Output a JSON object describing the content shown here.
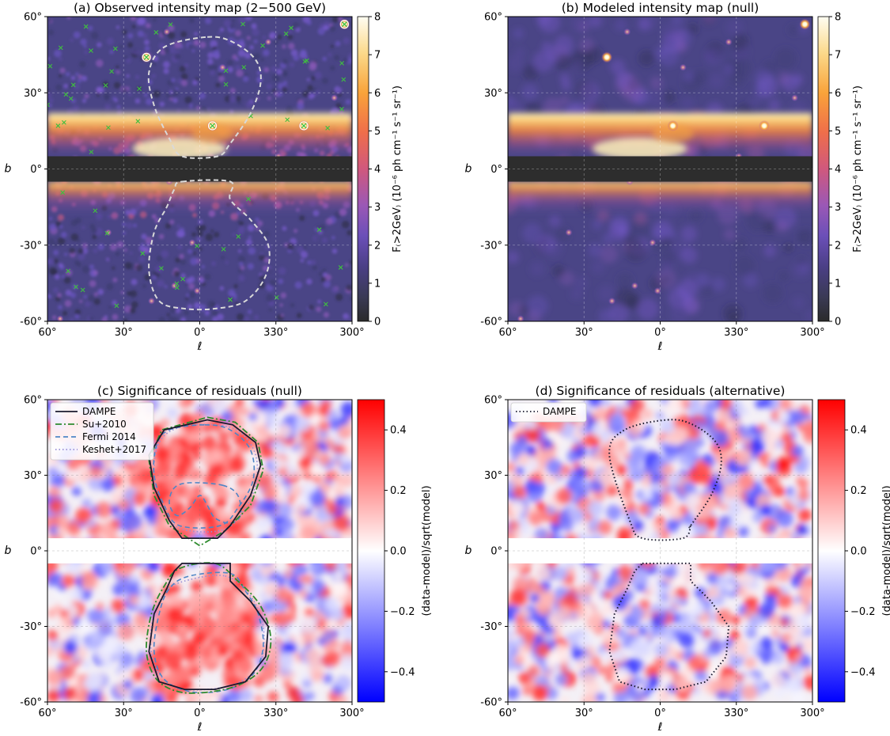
{
  "colors": {
    "gap_dark": "#2d2d2d",
    "gap_light": "#ffffff",
    "contour_light": "#d9d9d9",
    "dampe": "#1a1a2e",
    "su2010": "#2e8b2e",
    "fermi2014": "#4f86c6",
    "keshet2017": "#9a8fd6",
    "source_green": "#3fbf3f"
  },
  "chart_data": [
    {
      "id": "a",
      "type": "heatmap",
      "title": "(a) Observed intensity map (2−500 GeV)",
      "xlabel": "ℓ",
      "ylabel": "b",
      "xlim": [
        60,
        -60
      ],
      "ylim": [
        -60,
        60
      ],
      "xticks": [
        "60°",
        "30°",
        "0°",
        "330°",
        "300°"
      ],
      "xtick_values": [
        60,
        30,
        0,
        -30,
        -60
      ],
      "yticks": [
        "-60°",
        "-30°",
        "0°",
        "30°",
        "60°"
      ],
      "ytick_values": [
        -60,
        -30,
        0,
        30,
        60
      ],
      "masked_band_b": [
        -5,
        5
      ],
      "colormap": "inferno-like",
      "colorbar": {
        "label": "F₍>2GeV₎ (10⁻⁶ ph cm⁻¹ s⁻¹ sr⁻¹)",
        "range": [
          0,
          8
        ],
        "ticks": [
          "0",
          "1",
          "2",
          "3",
          "4",
          "5",
          "6",
          "7",
          "8"
        ],
        "tick_values": [
          0,
          1,
          2,
          3,
          4,
          5,
          6,
          7,
          8
        ]
      },
      "bright_sources": [
        {
          "l": 21,
          "b": 44
        },
        {
          "l": -5,
          "b": 17
        },
        {
          "l": -41,
          "b": 17
        },
        {
          "l": -57,
          "b": 57
        },
        {
          "l": -9,
          "b": 40
        },
        {
          "l": 13,
          "b": 54
        },
        {
          "l": -27,
          "b": 50
        },
        {
          "l": -53,
          "b": 28
        },
        {
          "l": 12,
          "b": -5
        },
        {
          "l": 36,
          "b": -25
        },
        {
          "l": 3,
          "b": -29
        },
        {
          "l": 19,
          "b": -52
        },
        {
          "l": 1,
          "b": -48
        },
        {
          "l": 55,
          "b": -59
        },
        {
          "l": -31,
          "b": 5
        },
        {
          "l": 10,
          "b": -46
        }
      ],
      "contours": [
        {
          "name": "outline",
          "style": "dashed",
          "color": "#d9d9d9"
        }
      ]
    },
    {
      "id": "b",
      "type": "heatmap",
      "title": "(b) Modeled intensity map (null)",
      "xlabel": "ℓ",
      "ylabel": "b",
      "xlim": [
        60,
        -60
      ],
      "ylim": [
        -60,
        60
      ],
      "xticks": [
        "60°",
        "30°",
        "0°",
        "330°",
        "300°"
      ],
      "xtick_values": [
        60,
        30,
        0,
        -30,
        -60
      ],
      "yticks": [
        "-60°",
        "-30°",
        "0°",
        "30°",
        "60°"
      ],
      "ytick_values": [
        -60,
        -30,
        0,
        30,
        60
      ],
      "masked_band_b": [
        -5,
        5
      ],
      "colormap": "inferno-like",
      "colorbar": {
        "label": "F₍>2GeV₎ (10⁻⁶ ph cm⁻¹ s⁻¹ sr⁻¹)",
        "range": [
          0,
          8
        ],
        "ticks": [
          "0",
          "1",
          "2",
          "3",
          "4",
          "5",
          "6",
          "7",
          "8"
        ],
        "tick_values": [
          0,
          1,
          2,
          3,
          4,
          5,
          6,
          7,
          8
        ]
      },
      "bright_sources": [
        {
          "l": 21,
          "b": 44
        },
        {
          "l": -5,
          "b": 17
        },
        {
          "l": -41,
          "b": 17
        },
        {
          "l": -57,
          "b": 57
        },
        {
          "l": -9,
          "b": 40
        },
        {
          "l": 13,
          "b": 54
        },
        {
          "l": -27,
          "b": 50
        },
        {
          "l": -53,
          "b": 28
        },
        {
          "l": 12,
          "b": -5
        },
        {
          "l": 36,
          "b": -25
        },
        {
          "l": 3,
          "b": -29
        },
        {
          "l": 19,
          "b": -52
        },
        {
          "l": 1,
          "b": -48
        },
        {
          "l": 55,
          "b": -59
        },
        {
          "l": -31,
          "b": 5
        },
        {
          "l": 10,
          "b": -46
        }
      ],
      "contours": []
    },
    {
      "id": "c",
      "type": "heatmap",
      "title": "(c) Significance of residuals (null)",
      "xlabel": "ℓ",
      "ylabel": "b",
      "xlim": [
        60,
        -60
      ],
      "ylim": [
        -60,
        60
      ],
      "xticks": [
        "60°",
        "30°",
        "0°",
        "330°",
        "300°"
      ],
      "xtick_values": [
        60,
        30,
        0,
        -30,
        -60
      ],
      "yticks": [
        "-60°",
        "-30°",
        "0°",
        "30°",
        "60°"
      ],
      "ytick_values": [
        -60,
        -30,
        0,
        30,
        60
      ],
      "masked_band_b": [
        -5,
        5
      ],
      "colormap": "bwr",
      "colorbar": {
        "label": "(data-model)/sqrt(model)",
        "range": [
          -0.5,
          0.5
        ],
        "ticks": [
          "−0.4",
          "−0.2",
          "0.0",
          "0.2",
          "0.4"
        ],
        "tick_values": [
          -0.4,
          -0.2,
          0.0,
          0.2,
          0.4
        ]
      },
      "legend": {
        "placement": "top-left",
        "entries": [
          {
            "label": "DAMPE",
            "style": "solid",
            "color": "#1a1a2e"
          },
          {
            "label": "Su+2010",
            "style": "dashdot",
            "color": "#2e8b2e"
          },
          {
            "label": "Fermi 2014",
            "style": "dashed",
            "color": "#4f86c6"
          },
          {
            "label": "Keshet+2017",
            "style": "dotted",
            "color": "#9a8fd6"
          }
        ]
      },
      "bubble_excess": {
        "north_b_range": [
          5,
          52
        ],
        "south_b_range": [
          -55,
          -5
        ],
        "mean_significance": 0.3
      }
    },
    {
      "id": "d",
      "type": "heatmap",
      "title": "(d) Significance of residuals (alternative)",
      "xlabel": "ℓ",
      "ylabel": "b",
      "xlim": [
        60,
        -60
      ],
      "ylim": [
        -60,
        60
      ],
      "xticks": [
        "60°",
        "30°",
        "0°",
        "330°",
        "300°"
      ],
      "xtick_values": [
        60,
        30,
        0,
        -30,
        -60
      ],
      "yticks": [
        "-60°",
        "-30°",
        "0°",
        "30°",
        "60°"
      ],
      "ytick_values": [
        -60,
        -30,
        0,
        30,
        60
      ],
      "masked_band_b": [
        -5,
        5
      ],
      "colormap": "bwr",
      "colorbar": {
        "label": "(data-model)/sqrt(model)",
        "range": [
          -0.5,
          0.5
        ],
        "ticks": [
          "−0.4",
          "−0.2",
          "0.0",
          "0.2",
          "0.4"
        ],
        "tick_values": [
          -0.4,
          -0.2,
          0.0,
          0.2,
          0.4
        ]
      },
      "legend": {
        "placement": "top-left",
        "entries": [
          {
            "label": "DAMPE",
            "style": "dotted",
            "color": "#1a1a2e"
          }
        ]
      },
      "bubble_excess": {
        "north_b_range": [
          5,
          52
        ],
        "south_b_range": [
          -55,
          -5
        ],
        "mean_significance": 0.0
      }
    }
  ]
}
